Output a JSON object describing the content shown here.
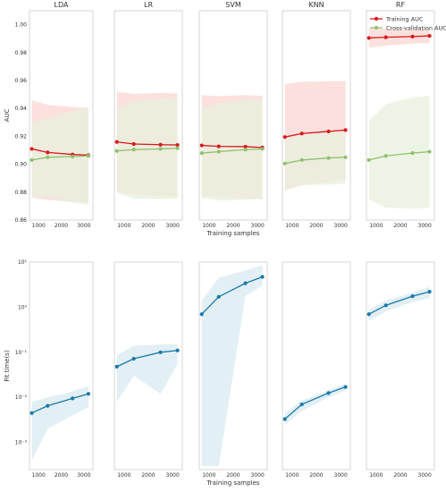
{
  "chart_data": [
    {
      "type": "line",
      "row": "auc",
      "ylabel": "AUC",
      "xlabel": "Training samples",
      "ylim": [
        0.86,
        1.01
      ],
      "yticks": [
        0.86,
        0.88,
        0.9,
        0.92,
        0.94,
        0.96,
        0.98,
        1.0
      ],
      "ytick_labels": [
        "0.86",
        "0.88",
        "0.90",
        "0.92",
        "0.94",
        "0.96",
        "0.98",
        "1.00"
      ],
      "xlim": [
        600,
        3400
      ],
      "xticks": [
        1000,
        2000,
        3000
      ],
      "xtick_labels": [
        "1000",
        "2000",
        "3000"
      ],
      "legend": {
        "location": "top-right",
        "entries": [
          "Training AUC",
          "Cross-validation AUC"
        ]
      },
      "colors": {
        "train": "#d7191c",
        "cv": "#8dc26f",
        "train_band": "#fbdad7",
        "cv_band": "#e8f0dc"
      },
      "panels": [
        {
          "title": "LDA",
          "x": [
            700,
            1400,
            2500,
            3200
          ],
          "train": [
            0.911,
            0.9085,
            0.907,
            0.9065
          ],
          "train_std": [
            0.035,
            0.034,
            0.034,
            0.034
          ],
          "cv": [
            0.903,
            0.905,
            0.9055,
            0.906
          ],
          "cv_std": [
            0.027,
            0.028,
            0.033,
            0.035
          ]
        },
        {
          "title": "LR",
          "x": [
            700,
            1400,
            2500,
            3200
          ],
          "train": [
            0.916,
            0.9145,
            0.914,
            0.9138
          ],
          "train_std": [
            0.036,
            0.036,
            0.037,
            0.037
          ],
          "cv": [
            0.9095,
            0.9105,
            0.911,
            0.9115
          ],
          "cv_std": [
            0.03,
            0.035,
            0.036,
            0.036
          ]
        },
        {
          "title": "SVM",
          "x": [
            700,
            1400,
            2500,
            3200
          ],
          "train": [
            0.9135,
            0.9128,
            0.9126,
            0.912
          ],
          "train_std": [
            0.036,
            0.036,
            0.037,
            0.037
          ],
          "cv": [
            0.908,
            0.909,
            0.9105,
            0.911
          ],
          "cv_std": [
            0.032,
            0.035,
            0.036,
            0.036
          ]
        },
        {
          "title": "KNN",
          "x": [
            700,
            1400,
            2500,
            3200
          ],
          "train": [
            0.9195,
            0.922,
            0.9235,
            0.9245
          ],
          "train_std": [
            0.038,
            0.037,
            0.036,
            0.035
          ],
          "cv": [
            0.9005,
            0.903,
            0.9045,
            0.905
          ],
          "cv_std": [
            0.018,
            0.018,
            0.019,
            0.019
          ]
        },
        {
          "title": "RF",
          "x": [
            700,
            1400,
            2500,
            3200
          ],
          "train": [
            0.9905,
            0.991,
            0.9915,
            0.992
          ],
          "train_std": [
            0.007,
            0.006,
            0.005,
            0.005
          ],
          "cv": [
            0.903,
            0.906,
            0.908,
            0.909
          ],
          "cv_std": [
            0.028,
            0.037,
            0.04,
            0.04
          ]
        }
      ]
    },
    {
      "type": "line",
      "row": "fit-time",
      "ylabel": "Fit time(s)",
      "xlabel": "Training samples",
      "yscale": "log",
      "ylim": [
        0.00025,
        10
      ],
      "yticks": [
        0.001,
        0.01,
        0.1,
        1,
        10
      ],
      "ytick_labels": [
        "10⁻³",
        "10⁻²",
        "10⁻¹",
        "10⁰",
        "10¹"
      ],
      "xlim": [
        600,
        3400
      ],
      "xticks": [
        1000,
        2000,
        3000
      ],
      "xtick_labels": [
        "1000",
        "2000",
        "3000"
      ],
      "colors": {
        "line": "#1a7aa8",
        "band": "#e2eff5"
      },
      "panels": [
        {
          "x": [
            700,
            1400,
            2500,
            3200
          ],
          "y": [
            0.0045,
            0.0065,
            0.0095,
            0.012
          ],
          "lower": [
            0.0004,
            0.002,
            0.004,
            0.006
          ],
          "upper": [
            0.008,
            0.01,
            0.0135,
            0.018
          ]
        },
        {
          "x": [
            700,
            1400,
            2500,
            3200
          ],
          "y": [
            0.048,
            0.072,
            0.1,
            0.11
          ],
          "lower": [
            0.008,
            0.03,
            0.012,
            0.055
          ],
          "upper": [
            0.085,
            0.14,
            0.15,
            0.15
          ]
        },
        {
          "x": [
            700,
            1400,
            2500,
            3200
          ],
          "y": [
            0.7,
            1.7,
            3.4,
            4.7
          ],
          "lower": [
            0.0003,
            0.0003,
            1.8,
            3.0
          ],
          "upper": [
            1.4,
            4.5,
            6.5,
            8.5
          ]
        },
        {
          "x": [
            700,
            1400,
            2500,
            3200
          ],
          "y": [
            0.0033,
            0.007,
            0.0125,
            0.017
          ],
          "lower": [
            0.0025,
            0.005,
            0.01,
            0.014
          ],
          "upper": [
            0.0045,
            0.0085,
            0.0145,
            0.02
          ]
        },
        {
          "x": [
            700,
            1400,
            2500,
            3200
          ],
          "y": [
            0.7,
            1.1,
            1.75,
            2.2
          ],
          "lower": [
            0.5,
            0.8,
            1.3,
            1.6
          ],
          "upper": [
            0.9,
            1.4,
            2.1,
            2.8
          ]
        }
      ]
    }
  ]
}
